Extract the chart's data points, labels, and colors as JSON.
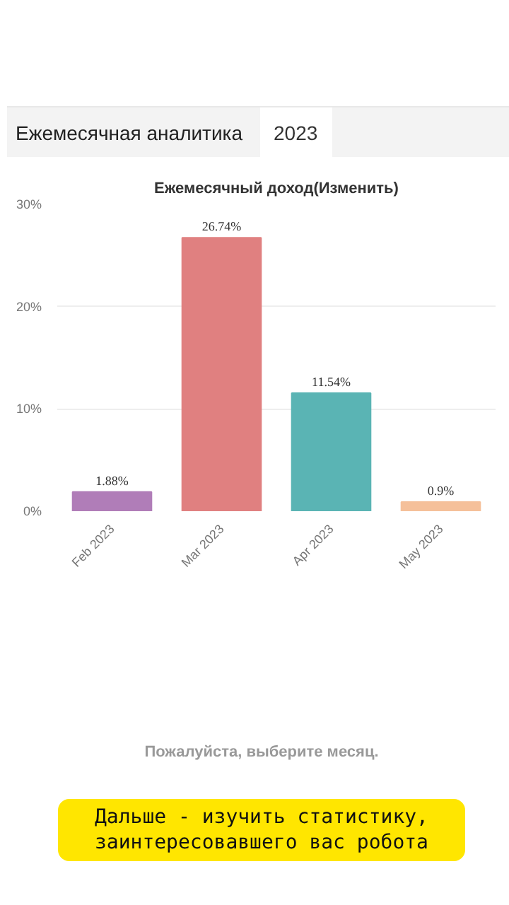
{
  "chart_data": {
    "type": "bar",
    "title": "Ежемесячный доход(Изменить)",
    "categories": [
      "Feb 2023",
      "Mar 2023",
      "Apr 2023",
      "May 2023"
    ],
    "values": [
      1.88,
      26.74,
      11.54,
      0.9
    ],
    "colors": [
      "#b07db8",
      "#e08080",
      "#5ab4b4",
      "#f5c09a"
    ],
    "value_labels": [
      "1.88%",
      "26.74%",
      "11.54%",
      "0.9%"
    ],
    "ylim": [
      0,
      30
    ],
    "yticks": [
      {
        "value": 0,
        "label": "0%"
      },
      {
        "value": 10,
        "label": "10%"
      },
      {
        "value": 20,
        "label": "20%"
      },
      {
        "value": 30,
        "label": "30%"
      }
    ],
    "grid": "y",
    "annotations": [
      "Ежемесячная аналитика",
      "2023",
      "Пожалуйста, выберите месяц.",
      "Дальше - изучить статистику, заинтересовавшего вас робота"
    ]
  }
}
